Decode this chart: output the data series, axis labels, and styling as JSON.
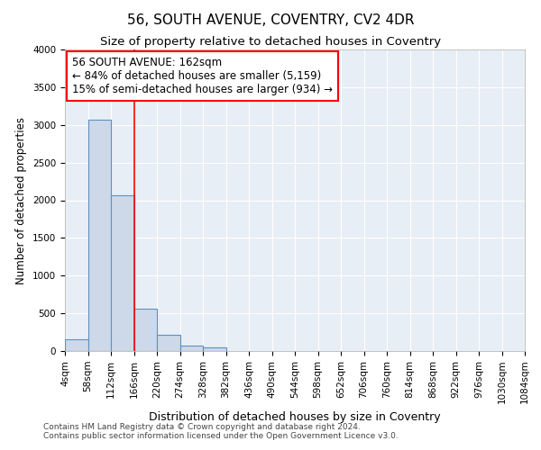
{
  "title": "56, SOUTH AVENUE, COVENTRY, CV2 4DR",
  "subtitle": "Size of property relative to detached houses in Coventry",
  "xlabel": "Distribution of detached houses by size in Coventry",
  "ylabel": "Number of detached properties",
  "bar_edges": [
    4,
    58,
    112,
    166,
    220,
    274,
    328,
    382,
    436,
    490,
    544,
    598,
    652,
    706,
    760,
    814,
    868,
    922,
    976,
    1030,
    1084
  ],
  "bar_heights": [
    150,
    3070,
    2070,
    565,
    215,
    75,
    50,
    0,
    0,
    0,
    0,
    0,
    0,
    0,
    0,
    0,
    0,
    0,
    0,
    0
  ],
  "bar_color": "#cdd9e8",
  "bar_edgecolor": "#6090c0",
  "red_line_x": 166,
  "annotation_text": "56 SOUTH AVENUE: 162sqm\n← 84% of detached houses are smaller (5,159)\n15% of semi-detached houses are larger (934) →",
  "ylim": [
    0,
    4000
  ],
  "yticks": [
    0,
    500,
    1000,
    1500,
    2000,
    2500,
    3000,
    3500,
    4000
  ],
  "xtick_labels": [
    "4sqm",
    "58sqm",
    "112sqm",
    "166sqm",
    "220sqm",
    "274sqm",
    "328sqm",
    "382sqm",
    "436sqm",
    "490sqm",
    "544sqm",
    "598sqm",
    "652sqm",
    "706sqm",
    "760sqm",
    "814sqm",
    "868sqm",
    "922sqm",
    "976sqm",
    "1030sqm",
    "1084sqm"
  ],
  "footer_line1": "Contains HM Land Registry data © Crown copyright and database right 2024.",
  "footer_line2": "Contains public sector information licensed under the Open Government Licence v3.0.",
  "bg_color": "#e8eef5",
  "grid_color": "#ffffff",
  "title_fontsize": 11,
  "subtitle_fontsize": 9.5,
  "xlabel_fontsize": 9,
  "ylabel_fontsize": 8.5,
  "tick_fontsize": 7.5,
  "footer_fontsize": 6.5,
  "annotation_fontsize": 8.5
}
